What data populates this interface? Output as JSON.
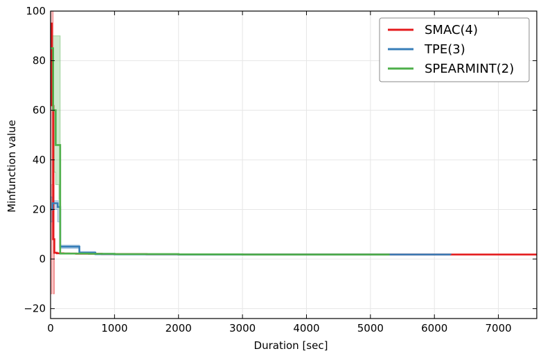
{
  "chart_data": {
    "type": "line",
    "title": "",
    "xlabel": "Duration [sec]",
    "ylabel": "Minfunction value",
    "xlim": [
      0,
      7600
    ],
    "ylim": [
      -24,
      100
    ],
    "xticks": [
      0,
      1000,
      2000,
      3000,
      4000,
      5000,
      6000,
      7000
    ],
    "yticks": [
      -20,
      0,
      20,
      40,
      60,
      80,
      100
    ],
    "grid": true,
    "legend_position": "top-right",
    "series": [
      {
        "name": "SMAC(4)",
        "color": "#e41a1c",
        "x": [
          0,
          20,
          40,
          60,
          100,
          200,
          400,
          800,
          1500,
          3000,
          5000,
          7600
        ],
        "y": [
          95,
          62,
          8,
          2.5,
          2.3,
          2.2,
          2.1,
          2.0,
          1.9,
          1.8,
          1.8,
          1.8
        ],
        "band": {
          "x": [
            0,
            20,
            40,
            60,
            100,
            200
          ],
          "lower": [
            -14,
            30,
            -14,
            2.3,
            2.2,
            2.1
          ],
          "upper": [
            100,
            100,
            62,
            2.8,
            2.5,
            2.3
          ]
        }
      },
      {
        "name": "TPE(3)",
        "color": "#377eb8",
        "x": [
          0,
          30,
          80,
          110,
          150,
          200,
          400,
          450,
          550,
          620,
          700,
          1000,
          2000,
          4000,
          6250
        ],
        "y": [
          20,
          22.5,
          22.5,
          21,
          5,
          5,
          5,
          2.5,
          2.5,
          2.5,
          2.0,
          1.9,
          1.8,
          1.8,
          1.7
        ],
        "band": {
          "x": [
            0,
            30,
            80,
            110,
            150,
            200,
            400,
            450,
            550,
            620,
            700,
            1000
          ],
          "lower": [
            15,
            20,
            20,
            15,
            4.3,
            4.3,
            4.3,
            2.0,
            2.0,
            2.0,
            1.7,
            1.7
          ],
          "upper": [
            25,
            23.5,
            23.5,
            23.5,
            5.6,
            5.6,
            5.6,
            3.0,
            3.0,
            3.0,
            2.3,
            2.1
          ]
        }
      },
      {
        "name": "SPEARMINT(2)",
        "color": "#4daf4a",
        "x": [
          0,
          40,
          80,
          130,
          150,
          300,
          600,
          1000,
          2000,
          3000,
          5300
        ],
        "y": [
          85,
          60,
          46,
          46,
          2.2,
          2.2,
          2.1,
          2.0,
          1.9,
          1.8,
          1.8
        ],
        "band": {
          "x": [
            0,
            40,
            80,
            130,
            150,
            300
          ],
          "lower": [
            80,
            35,
            30,
            24,
            2.0,
            2.0
          ],
          "upper": [
            90,
            90,
            90,
            90,
            2.5,
            2.4
          ]
        }
      }
    ]
  }
}
